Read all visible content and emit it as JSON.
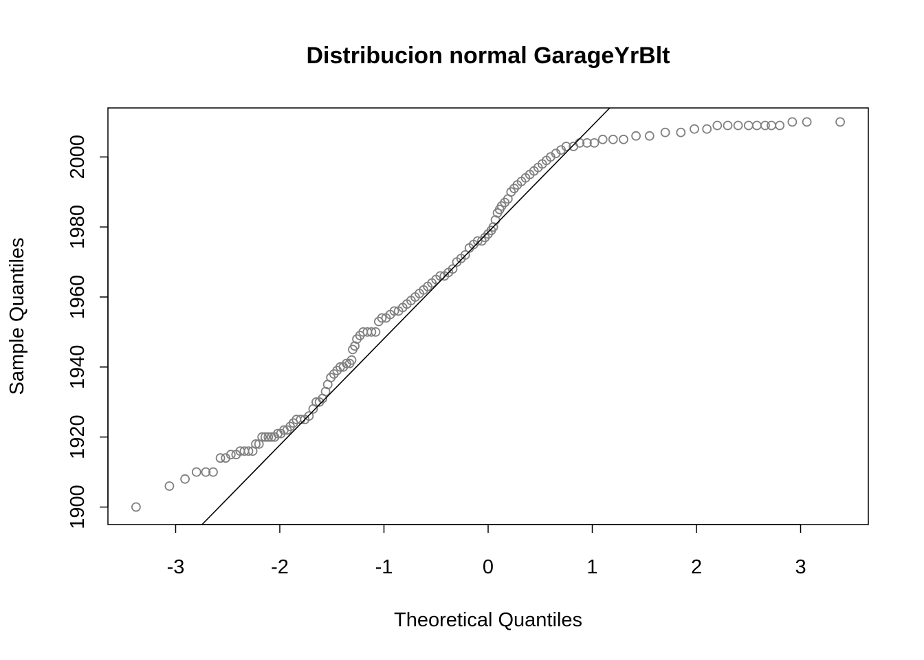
{
  "chart_data": {
    "type": "scatter",
    "title": "Distribucion normal GarageYrBlt",
    "xlabel": "Theoretical Quantiles",
    "ylabel": "Sample Quantiles",
    "xlim": [
      -3.65,
      3.65
    ],
    "ylim": [
      1895,
      2014
    ],
    "xticks": [
      -3,
      -2,
      -1,
      0,
      1,
      2,
      3
    ],
    "xtick_labels": [
      "-3",
      "-2",
      "-1",
      "0",
      "1",
      "2",
      "3"
    ],
    "yticks": [
      1900,
      1920,
      1940,
      1960,
      1980,
      2000
    ],
    "ytick_labels": [
      "1900",
      "1920",
      "1940",
      "1960",
      "1980",
      "2000"
    ],
    "grid": false,
    "point_color": "#808080",
    "line_color": "#000000",
    "qq_line": {
      "slope": 30.4,
      "intercept": 1978.5
    },
    "points": [
      [
        -3.38,
        1900
      ],
      [
        -3.06,
        1906
      ],
      [
        -2.91,
        1908
      ],
      [
        -2.8,
        1910
      ],
      [
        -2.71,
        1910
      ],
      [
        -2.64,
        1910
      ],
      [
        -2.57,
        1914
      ],
      [
        -2.52,
        1914
      ],
      [
        -2.47,
        1915
      ],
      [
        -2.42,
        1915
      ],
      [
        -2.38,
        1916
      ],
      [
        -2.34,
        1916
      ],
      [
        -2.3,
        1916
      ],
      [
        -2.26,
        1916
      ],
      [
        -2.23,
        1918
      ],
      [
        -2.2,
        1918
      ],
      [
        -2.17,
        1920
      ],
      [
        -2.14,
        1920
      ],
      [
        -2.11,
        1920
      ],
      [
        -2.08,
        1920
      ],
      [
        -2.05,
        1920
      ],
      [
        -2.02,
        1921
      ],
      [
        -1.99,
        1921
      ],
      [
        -1.96,
        1922
      ],
      [
        -1.93,
        1922
      ],
      [
        -1.9,
        1923
      ],
      [
        -1.87,
        1924
      ],
      [
        -1.84,
        1925
      ],
      [
        -1.8,
        1925
      ],
      [
        -1.76,
        1925
      ],
      [
        -1.72,
        1926
      ],
      [
        -1.68,
        1928
      ],
      [
        -1.65,
        1930
      ],
      [
        -1.62,
        1930
      ],
      [
        -1.59,
        1931
      ],
      [
        -1.56,
        1933
      ],
      [
        -1.54,
        1935
      ],
      [
        -1.51,
        1937
      ],
      [
        -1.48,
        1938
      ],
      [
        -1.45,
        1939
      ],
      [
        -1.42,
        1940
      ],
      [
        -1.39,
        1940
      ],
      [
        -1.36,
        1941
      ],
      [
        -1.33,
        1941
      ],
      [
        -1.31,
        1942
      ],
      [
        -1.3,
        1945
      ],
      [
        -1.28,
        1946
      ],
      [
        -1.26,
        1948
      ],
      [
        -1.23,
        1949
      ],
      [
        -1.2,
        1950
      ],
      [
        -1.16,
        1950
      ],
      [
        -1.12,
        1950
      ],
      [
        -1.08,
        1950
      ],
      [
        -1.05,
        1953
      ],
      [
        -1.02,
        1954
      ],
      [
        -0.98,
        1954
      ],
      [
        -0.94,
        1955
      ],
      [
        -0.9,
        1956
      ],
      [
        -0.86,
        1956
      ],
      [
        -0.82,
        1957
      ],
      [
        -0.78,
        1958
      ],
      [
        -0.74,
        1959
      ],
      [
        -0.7,
        1960
      ],
      [
        -0.66,
        1961
      ],
      [
        -0.62,
        1962
      ],
      [
        -0.58,
        1963
      ],
      [
        -0.54,
        1964
      ],
      [
        -0.5,
        1965
      ],
      [
        -0.46,
        1966
      ],
      [
        -0.42,
        1966
      ],
      [
        -0.38,
        1967
      ],
      [
        -0.34,
        1968
      ],
      [
        -0.3,
        1970
      ],
      [
        -0.26,
        1971
      ],
      [
        -0.22,
        1972
      ],
      [
        -0.18,
        1974
      ],
      [
        -0.14,
        1975
      ],
      [
        -0.1,
        1976
      ],
      [
        -0.06,
        1976
      ],
      [
        -0.03,
        1977
      ],
      [
        0.0,
        1978
      ],
      [
        0.03,
        1979
      ],
      [
        0.05,
        1980
      ],
      [
        0.07,
        1982
      ],
      [
        0.09,
        1984
      ],
      [
        0.11,
        1985
      ],
      [
        0.13,
        1986
      ],
      [
        0.16,
        1987
      ],
      [
        0.19,
        1988
      ],
      [
        0.22,
        1990
      ],
      [
        0.25,
        1991
      ],
      [
        0.28,
        1992
      ],
      [
        0.32,
        1993
      ],
      [
        0.36,
        1994
      ],
      [
        0.4,
        1995
      ],
      [
        0.44,
        1996
      ],
      [
        0.48,
        1997
      ],
      [
        0.52,
        1998
      ],
      [
        0.56,
        1999
      ],
      [
        0.6,
        2000
      ],
      [
        0.65,
        2001
      ],
      [
        0.7,
        2002
      ],
      [
        0.75,
        2003
      ],
      [
        0.82,
        2003
      ],
      [
        0.88,
        2004
      ],
      [
        0.95,
        2004
      ],
      [
        1.02,
        2004
      ],
      [
        1.1,
        2005
      ],
      [
        1.2,
        2005
      ],
      [
        1.3,
        2005
      ],
      [
        1.42,
        2006
      ],
      [
        1.55,
        2006
      ],
      [
        1.7,
        2007
      ],
      [
        1.85,
        2007
      ],
      [
        1.98,
        2008
      ],
      [
        2.1,
        2008
      ],
      [
        2.2,
        2009
      ],
      [
        2.3,
        2009
      ],
      [
        2.4,
        2009
      ],
      [
        2.5,
        2009
      ],
      [
        2.58,
        2009
      ],
      [
        2.66,
        2009
      ],
      [
        2.72,
        2009
      ],
      [
        2.8,
        2009
      ],
      [
        2.92,
        2010
      ],
      [
        3.06,
        2010
      ],
      [
        3.38,
        2010
      ]
    ]
  }
}
